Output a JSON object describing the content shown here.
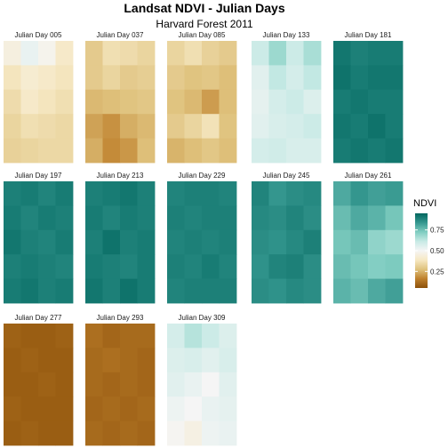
{
  "chart_data": {
    "type": "heatmap",
    "title": "Landsat NDVI - Julian Days",
    "subtitle": "Harvard Forest 2011",
    "legend": {
      "title": "NDVI",
      "ticks": [
        0.25,
        0.5,
        0.75
      ],
      "tick_labels": [
        "0.25",
        "0.50",
        "0.75"
      ],
      "range": [
        0.05,
        0.95
      ],
      "placement": "right",
      "colors": [
        "#8c510a",
        "#bf812d",
        "#dfc27d",
        "#f6e8c3",
        "#f5f5f5",
        "#c7eae5",
        "#80cdc1",
        "#35978f",
        "#01665e"
      ]
    },
    "panels": [
      {
        "label": "Julian Day  005",
        "values": [
          [
            0.45,
            0.53,
            0.48,
            0.4
          ],
          [
            0.38,
            0.42,
            0.4,
            0.38
          ],
          [
            0.35,
            0.4,
            0.38,
            0.36
          ],
          [
            0.33,
            0.36,
            0.35,
            0.34
          ],
          [
            0.32,
            0.33,
            0.34,
            0.34
          ]
        ]
      },
      {
        "label": "Julian Day  037",
        "values": [
          [
            0.3,
            0.36,
            0.35,
            0.33
          ],
          [
            0.3,
            0.33,
            0.3,
            0.31
          ],
          [
            0.26,
            0.27,
            0.28,
            0.29
          ],
          [
            0.22,
            0.19,
            0.24,
            0.26
          ],
          [
            0.24,
            0.18,
            0.2,
            0.27
          ]
        ]
      },
      {
        "label": "Julian Day  085",
        "values": [
          [
            0.33,
            0.36,
            0.32,
            0.3
          ],
          [
            0.3,
            0.28,
            0.29,
            0.27
          ],
          [
            0.28,
            0.26,
            0.21,
            0.27
          ],
          [
            0.3,
            0.33,
            0.37,
            0.28
          ],
          [
            0.25,
            0.27,
            0.29,
            0.27
          ]
        ]
      },
      {
        "label": "Julian Day  133",
        "values": [
          [
            0.6,
            0.68,
            0.6,
            0.66
          ],
          [
            0.55,
            0.62,
            0.58,
            0.62
          ],
          [
            0.54,
            0.58,
            0.6,
            0.56
          ],
          [
            0.55,
            0.57,
            0.58,
            0.6
          ],
          [
            0.58,
            0.59,
            0.57,
            0.57
          ]
        ]
      },
      {
        "label": "Julian Day  181",
        "values": [
          [
            0.91,
            0.89,
            0.9,
            0.9
          ],
          [
            0.92,
            0.9,
            0.91,
            0.91
          ],
          [
            0.9,
            0.91,
            0.9,
            0.9
          ],
          [
            0.91,
            0.9,
            0.92,
            0.9
          ],
          [
            0.9,
            0.91,
            0.9,
            0.91
          ]
        ]
      },
      {
        "label": "Julian Day  197",
        "values": [
          [
            0.89,
            0.9,
            0.88,
            0.9
          ],
          [
            0.9,
            0.88,
            0.9,
            0.89
          ],
          [
            0.91,
            0.89,
            0.88,
            0.9
          ],
          [
            0.89,
            0.9,
            0.89,
            0.88
          ],
          [
            0.9,
            0.91,
            0.89,
            0.9
          ]
        ]
      },
      {
        "label": "Julian Day  213",
        "values": [
          [
            0.89,
            0.9,
            0.91,
            0.89
          ],
          [
            0.9,
            0.88,
            0.9,
            0.89
          ],
          [
            0.89,
            0.92,
            0.89,
            0.9
          ],
          [
            0.9,
            0.89,
            0.88,
            0.9
          ],
          [
            0.91,
            0.89,
            0.92,
            0.9
          ]
        ]
      },
      {
        "label": "Julian Day  229",
        "values": [
          [
            0.88,
            0.89,
            0.89,
            0.88
          ],
          [
            0.89,
            0.88,
            0.89,
            0.89
          ],
          [
            0.88,
            0.89,
            0.88,
            0.89
          ],
          [
            0.89,
            0.88,
            0.9,
            0.88
          ],
          [
            0.88,
            0.89,
            0.89,
            0.89
          ]
        ]
      },
      {
        "label": "Julian Day  245",
        "values": [
          [
            0.88,
            0.84,
            0.86,
            0.87
          ],
          [
            0.87,
            0.86,
            0.88,
            0.86
          ],
          [
            0.86,
            0.85,
            0.87,
            0.89
          ],
          [
            0.85,
            0.88,
            0.89,
            0.86
          ],
          [
            0.86,
            0.85,
            0.87,
            0.86
          ]
        ]
      },
      {
        "label": "Julian Day  261",
        "values": [
          [
            0.8,
            0.84,
            0.82,
            0.83
          ],
          [
            0.76,
            0.8,
            0.78,
            0.74
          ],
          [
            0.74,
            0.76,
            0.7,
            0.68
          ],
          [
            0.76,
            0.74,
            0.72,
            0.73
          ],
          [
            0.78,
            0.76,
            0.8,
            0.82
          ]
        ]
      },
      {
        "label": "Julian Day  277",
        "values": [
          [
            0.09,
            0.08,
            0.08,
            0.09
          ],
          [
            0.08,
            0.09,
            0.08,
            0.08
          ],
          [
            0.08,
            0.08,
            0.09,
            0.08
          ],
          [
            0.09,
            0.08,
            0.08,
            0.08
          ],
          [
            0.08,
            0.09,
            0.08,
            0.08
          ]
        ]
      },
      {
        "label": "Julian Day  293",
        "values": [
          [
            0.12,
            0.1,
            0.11,
            0.11
          ],
          [
            0.11,
            0.12,
            0.11,
            0.1
          ],
          [
            0.11,
            0.1,
            0.11,
            0.1
          ],
          [
            0.1,
            0.11,
            0.1,
            0.11
          ],
          [
            0.11,
            0.1,
            0.11,
            0.1
          ]
        ]
      },
      {
        "label": "Julian Day  309",
        "values": [
          [
            0.58,
            0.64,
            0.6,
            0.56
          ],
          [
            0.56,
            0.57,
            0.55,
            0.57
          ],
          [
            0.55,
            0.53,
            0.5,
            0.55
          ],
          [
            0.52,
            0.5,
            0.53,
            0.54
          ],
          [
            0.49,
            0.46,
            0.52,
            0.53
          ]
        ]
      }
    ]
  }
}
